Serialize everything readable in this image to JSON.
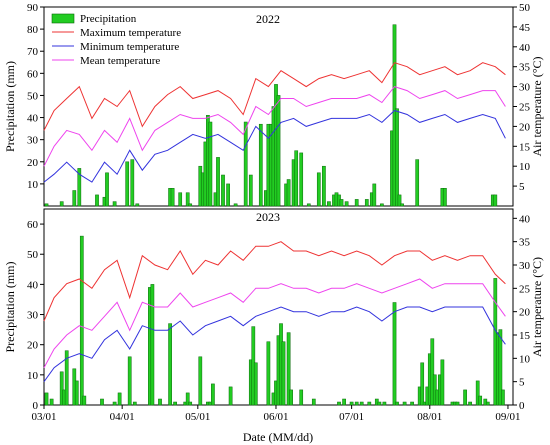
{
  "chart_data": [
    {
      "type": "bar+line",
      "panel_label": "2022",
      "xlabel": "Date (MM/dd)",
      "ylabel_left": "Precipitation (mm)",
      "ylabel_right": "Air temperature (°C)",
      "ylim_left": [
        0,
        90
      ],
      "yticks_left": [
        10,
        20,
        30,
        40,
        50,
        60,
        70,
        80,
        90
      ],
      "ylim_right": [
        0,
        50
      ],
      "yticks_right": [
        5,
        10,
        15,
        20,
        25,
        30,
        35,
        40,
        45,
        50
      ],
      "legend": [
        "Precipitation",
        "Maximum temperature",
        "Minimum temperature",
        "Mean temperature"
      ],
      "legend_position": "top-left",
      "colors": {
        "precip": "#22cc22",
        "tmax": "#ee3333",
        "tmin": "#3333dd",
        "tmean": "#ee44ee"
      },
      "precipitation": {
        "dates": [
          "03/02",
          "03/08",
          "03/13",
          "03/15",
          "03/22",
          "03/25",
          "03/26",
          "03/29",
          "04/03",
          "04/05",
          "04/07",
          "04/20",
          "04/21",
          "04/24",
          "04/27",
          "04/28",
          "05/02",
          "05/03",
          "05/04",
          "05/05",
          "05/06",
          "05/08",
          "05/09",
          "05/11",
          "05/13",
          "05/16",
          "05/20",
          "05/22",
          "05/26",
          "05/28",
          "05/29",
          "05/30",
          "05/31",
          "06/01",
          "06/02",
          "06/05",
          "06/06",
          "06/08",
          "06/09",
          "06/11",
          "06/14",
          "06/18",
          "06/20",
          "06/22",
          "06/24",
          "06/25",
          "06/26",
          "06/27",
          "06/29",
          "07/03",
          "07/07",
          "07/09",
          "07/10",
          "07/13",
          "07/17",
          "07/18",
          "07/19",
          "07/20",
          "07/21",
          "07/27",
          "08/06",
          "08/07",
          "08/26",
          "08/27"
        ],
        "values": [
          1,
          2,
          7,
          17,
          5,
          4,
          15,
          2,
          20,
          21,
          1,
          8,
          8,
          6,
          6,
          1,
          18,
          15,
          29,
          41,
          38,
          6,
          22,
          14,
          10,
          1,
          38,
          14,
          37,
          7,
          37,
          37,
          45,
          55,
          50,
          10,
          12,
          21,
          25,
          24,
          1,
          15,
          18,
          2,
          5,
          6,
          5,
          3,
          2,
          3,
          3,
          6,
          10,
          1,
          34,
          82,
          44,
          5,
          1,
          21,
          8,
          8,
          5,
          5
        ]
      },
      "temperature": {
        "dates": [
          "03/01",
          "03/05",
          "03/10",
          "03/15",
          "03/20",
          "03/25",
          "03/30",
          "04/04",
          "04/09",
          "04/14",
          "04/19",
          "04/24",
          "04/29",
          "05/04",
          "05/09",
          "05/14",
          "05/19",
          "05/24",
          "05/29",
          "06/03",
          "06/08",
          "06/13",
          "06/18",
          "06/23",
          "06/28",
          "07/03",
          "07/08",
          "07/13",
          "07/18",
          "07/23",
          "07/28",
          "08/02",
          "08/07",
          "08/12",
          "08/17",
          "08/22",
          "08/27",
          "08/31"
        ],
        "tmax": [
          19,
          24,
          27,
          30,
          22,
          27,
          25,
          29,
          20,
          25,
          28,
          30,
          27,
          28,
          29,
          27,
          23,
          32,
          30,
          34,
          32,
          30,
          32,
          33,
          32,
          33,
          34,
          31,
          36,
          35,
          33,
          34,
          35,
          33,
          34,
          36,
          35,
          33
        ],
        "tmin": [
          6,
          8,
          11,
          8,
          6,
          11,
          8,
          14,
          9,
          13,
          14,
          16,
          18,
          17,
          18,
          16,
          14,
          20,
          17,
          21,
          22,
          20,
          21,
          22,
          22,
          22,
          23,
          21,
          24,
          23,
          21,
          22,
          23,
          21,
          22,
          23,
          22,
          17
        ],
        "tmean": [
          10,
          15,
          19,
          18,
          14,
          19,
          16,
          22,
          14,
          19,
          21,
          23,
          22,
          22,
          23,
          21,
          18,
          25,
          23,
          27,
          27,
          25,
          26,
          27,
          27,
          27,
          28,
          26,
          30,
          29,
          27,
          28,
          29,
          27,
          28,
          29,
          29,
          25
        ]
      }
    },
    {
      "type": "bar+line",
      "panel_label": "2023",
      "xlabel": "Date (MM/dd)",
      "ylabel_left": "Precipitation (mm)",
      "ylabel_right": "Air temperature (°C)",
      "ylim_left": [
        0,
        65
      ],
      "yticks_left": [
        0,
        10,
        20,
        30,
        40,
        50,
        60
      ],
      "ylim_right": [
        0,
        42
      ],
      "yticks_right": [
        0,
        5,
        10,
        15,
        20,
        25,
        30,
        35,
        40
      ],
      "xticks": [
        "03/01",
        "04/01",
        "05/01",
        "06/01",
        "07/01",
        "08/01",
        "09/01"
      ],
      "colors": {
        "precip": "#22cc22",
        "tmax": "#ee3333",
        "tmin": "#3333dd",
        "tmean": "#ee44ee"
      },
      "precipitation": {
        "dates": [
          "03/02",
          "03/04",
          "03/08",
          "03/09",
          "03/10",
          "03/13",
          "03/14",
          "03/16",
          "03/17",
          "03/24",
          "03/29",
          "03/31",
          "04/04",
          "04/06",
          "04/12",
          "04/13",
          "04/16",
          "04/20",
          "04/22",
          "04/26",
          "04/27",
          "04/28",
          "05/02",
          "05/05",
          "05/06",
          "05/07",
          "05/14",
          "05/22",
          "05/23",
          "05/24",
          "05/29",
          "05/31",
          "06/01",
          "06/02",
          "06/03",
          "06/04",
          "06/06",
          "06/07",
          "06/11",
          "06/16",
          "06/26",
          "06/28",
          "07/01",
          "07/03",
          "07/05",
          "07/08",
          "07/11",
          "07/12",
          "07/14",
          "07/18",
          "07/19",
          "07/22",
          "07/25",
          "07/28",
          "07/29",
          "07/30",
          "07/31",
          "08/01",
          "08/02",
          "08/03",
          "08/04",
          "08/05",
          "08/06",
          "08/10",
          "08/11",
          "08/12",
          "08/15",
          "08/17",
          "08/20",
          "08/21",
          "08/23",
          "08/24",
          "08/27",
          "08/28",
          "08/29",
          "08/30"
        ],
        "values": [
          4,
          2,
          11,
          5,
          18,
          12,
          8,
          56,
          3,
          2,
          1,
          4,
          16,
          1,
          39,
          40,
          2,
          27,
          1,
          1,
          4,
          1,
          16,
          1,
          1,
          7,
          6,
          15,
          26,
          14,
          21,
          4,
          8,
          23,
          27,
          21,
          24,
          5,
          5,
          2,
          1,
          2,
          1,
          1,
          1,
          1,
          2,
          1,
          1,
          34,
          1,
          1,
          1,
          6,
          14,
          1,
          6,
          17,
          22,
          10,
          5,
          10,
          15,
          1,
          1,
          1,
          5,
          1,
          8,
          3,
          2,
          1,
          42,
          24,
          25,
          5
        ]
      },
      "temperature": {
        "dates": [
          "03/01",
          "03/05",
          "03/10",
          "03/15",
          "03/20",
          "03/25",
          "03/30",
          "04/04",
          "04/09",
          "04/14",
          "04/19",
          "04/24",
          "04/29",
          "05/04",
          "05/09",
          "05/14",
          "05/19",
          "05/24",
          "05/29",
          "06/03",
          "06/08",
          "06/13",
          "06/18",
          "06/23",
          "06/28",
          "07/03",
          "07/08",
          "07/13",
          "07/18",
          "07/23",
          "07/28",
          "08/02",
          "08/07",
          "08/12",
          "08/17",
          "08/22",
          "08/27",
          "08/31"
        ],
        "tmax": [
          18,
          23,
          26,
          27,
          25,
          29,
          31,
          23,
          32,
          30,
          29,
          33,
          28,
          31,
          30,
          33,
          31,
          34,
          34,
          35,
          33,
          33,
          32,
          33,
          32,
          33,
          32,
          30,
          32,
          33,
          33,
          31,
          32,
          31,
          32,
          32,
          28,
          26
        ],
        "tmin": [
          5,
          8,
          10,
          11,
          10,
          14,
          16,
          12,
          17,
          16,
          16,
          18,
          15,
          17,
          18,
          19,
          17,
          19,
          20,
          21,
          20,
          20,
          19,
          20,
          20,
          21,
          20,
          18,
          20,
          21,
          21,
          20,
          21,
          21,
          21,
          21,
          16,
          13
        ],
        "tmean": [
          8,
          12,
          15,
          17,
          16,
          19,
          22,
          16,
          22,
          21,
          21,
          24,
          21,
          22,
          23,
          24,
          22,
          25,
          25,
          26,
          25,
          25,
          24,
          25,
          25,
          26,
          25,
          24,
          25,
          26,
          27,
          25,
          26,
          26,
          26,
          26,
          22,
          19
        ]
      }
    }
  ]
}
